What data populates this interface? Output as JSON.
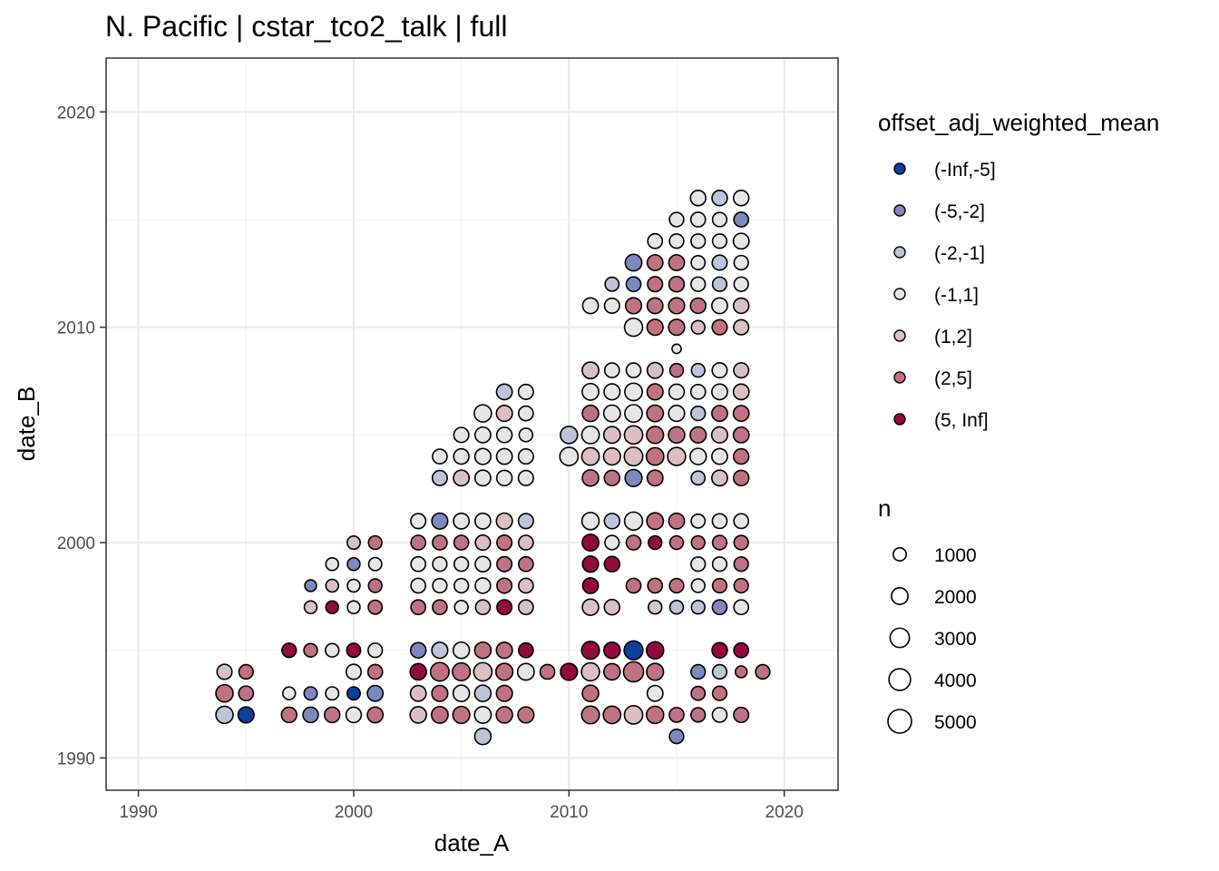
{
  "chart_data": {
    "type": "scatter",
    "title": "N. Pacific | cstar_tco2_talk | full",
    "xlabel": "date_A",
    "ylabel": "date_B",
    "xlim": [
      1988.5,
      2022.5
    ],
    "ylim": [
      1988.5,
      2022.5
    ],
    "xticks": [
      1990,
      2000,
      2010,
      2020
    ],
    "yticks": [
      1990,
      2000,
      2010,
      2020
    ],
    "grid": true,
    "color_legend": {
      "title": "offset_adj_weighted_mean",
      "classes": [
        {
          "label": "(-Inf,-5]",
          "color": "#0b3fa0"
        },
        {
          "label": "(-5,-2]",
          "color": "#7c89bf"
        },
        {
          "label": "(-2,-1]",
          "color": "#bec3d9"
        },
        {
          "label": "(-1,1]",
          "color": "#e6e6e6"
        },
        {
          "label": "(1,2]",
          "color": "#dbbfc5"
        },
        {
          "label": "(2,5]",
          "color": "#c07282"
        },
        {
          "label": "(5, Inf]",
          "color": "#930a3c"
        }
      ]
    },
    "size_legend": {
      "title": "n",
      "values": [
        1000,
        2000,
        3000,
        4000,
        5000
      ]
    },
    "points": [
      [
        1994,
        1994,
        4,
        1500
      ],
      [
        1995,
        1994,
        5,
        1300
      ],
      [
        1994,
        1993,
        5,
        2200
      ],
      [
        1995,
        1993,
        5,
        1400
      ],
      [
        1994,
        1992,
        2,
        2200
      ],
      [
        1995,
        1992,
        0,
        1800
      ],
      [
        1997,
        1995,
        6,
        1300
      ],
      [
        1998,
        1995,
        5,
        1100
      ],
      [
        1999,
        1995,
        3,
        1100
      ],
      [
        2000,
        1995,
        6,
        1200
      ],
      [
        2001,
        1995,
        3,
        1300
      ],
      [
        2000,
        1994,
        3,
        1500
      ],
      [
        2001,
        1994,
        5,
        1400
      ],
      [
        1997,
        1993,
        3,
        900
      ],
      [
        1998,
        1993,
        1,
        1000
      ],
      [
        1999,
        1993,
        3,
        1000
      ],
      [
        2000,
        1993,
        0,
        1000
      ],
      [
        2001,
        1993,
        1,
        1700
      ],
      [
        1997,
        1992,
        5,
        1600
      ],
      [
        1998,
        1992,
        1,
        1600
      ],
      [
        1999,
        1992,
        5,
        1600
      ],
      [
        2000,
        1992,
        3,
        1600
      ],
      [
        2001,
        1992,
        5,
        1700
      ],
      [
        2003,
        1995,
        1,
        1600
      ],
      [
        2004,
        1995,
        2,
        1800
      ],
      [
        2005,
        1995,
        3,
        1900
      ],
      [
        2006,
        1995,
        5,
        1900
      ],
      [
        2007,
        1995,
        5,
        1800
      ],
      [
        2008,
        1995,
        6,
        1400
      ],
      [
        2003,
        1994,
        6,
        1900
      ],
      [
        2004,
        1994,
        5,
        2700
      ],
      [
        2005,
        1994,
        5,
        2400
      ],
      [
        2006,
        1994,
        4,
        2600
      ],
      [
        2007,
        1994,
        5,
        2100
      ],
      [
        2008,
        1994,
        3,
        2000
      ],
      [
        2003,
        1993,
        4,
        1700
      ],
      [
        2004,
        1993,
        5,
        1800
      ],
      [
        2005,
        1993,
        3,
        1900
      ],
      [
        2006,
        1993,
        2,
        1900
      ],
      [
        2007,
        1993,
        5,
        1800
      ],
      [
        2003,
        1992,
        4,
        1900
      ],
      [
        2004,
        1992,
        5,
        2000
      ],
      [
        2005,
        1992,
        5,
        2100
      ],
      [
        2006,
        1992,
        3,
        2000
      ],
      [
        2007,
        1992,
        5,
        1900
      ],
      [
        2008,
        1992,
        5,
        1800
      ],
      [
        2006,
        1991,
        2,
        1900
      ],
      [
        2009,
        1994,
        5,
        1400
      ],
      [
        2010,
        1994,
        6,
        2100
      ],
      [
        2011,
        1994,
        4,
        2500
      ],
      [
        2012,
        1994,
        5,
        1900
      ],
      [
        2013,
        1994,
        5,
        3300
      ],
      [
        2014,
        1994,
        5,
        2100
      ],
      [
        2011,
        1995,
        6,
        2400
      ],
      [
        2012,
        1995,
        6,
        1900
      ],
      [
        2013,
        1995,
        0,
        2800
      ],
      [
        2014,
        1995,
        6,
        2200
      ],
      [
        2011,
        1993,
        5,
        1900
      ],
      [
        2014,
        1993,
        3,
        1700
      ],
      [
        2011,
        1992,
        5,
        2400
      ],
      [
        2012,
        1992,
        5,
        2300
      ],
      [
        2013,
        1992,
        4,
        2600
      ],
      [
        2014,
        1992,
        5,
        2200
      ],
      [
        2015,
        1992,
        5,
        1400
      ],
      [
        2015,
        1991,
        1,
        1300
      ],
      [
        2016,
        1994,
        1,
        1300
      ],
      [
        2017,
        1994,
        2,
        1300
      ],
      [
        2018,
        1994,
        5,
        700
      ],
      [
        2019,
        1994,
        5,
        1300
      ],
      [
        2016,
        1993,
        5,
        1200
      ],
      [
        2017,
        1993,
        5,
        1300
      ],
      [
        2016,
        1992,
        5,
        1300
      ],
      [
        2017,
        1992,
        3,
        1400
      ],
      [
        2018,
        1992,
        5,
        1500
      ],
      [
        2017,
        1995,
        6,
        1600
      ],
      [
        2018,
        1995,
        6,
        1400
      ],
      [
        1998,
        1998,
        1,
        700
      ],
      [
        1999,
        1998,
        4,
        900
      ],
      [
        2000,
        1998,
        3,
        900
      ],
      [
        2001,
        1998,
        5,
        1100
      ],
      [
        1998,
        1997,
        4,
        900
      ],
      [
        1999,
        1997,
        6,
        900
      ],
      [
        2000,
        1997,
        3,
        900
      ],
      [
        2001,
        1997,
        5,
        1200
      ],
      [
        1999,
        1999,
        3,
        900
      ],
      [
        2000,
        1999,
        1,
        900
      ],
      [
        2001,
        1999,
        3,
        1000
      ],
      [
        2000,
        2000,
        4,
        1000
      ],
      [
        2001,
        2000,
        5,
        1100
      ],
      [
        2003,
        2001,
        3,
        1500
      ],
      [
        2004,
        2001,
        1,
        1800
      ],
      [
        2005,
        2001,
        3,
        1700
      ],
      [
        2006,
        2001,
        3,
        1700
      ],
      [
        2007,
        2001,
        4,
        1800
      ],
      [
        2008,
        2001,
        2,
        1500
      ],
      [
        2003,
        2000,
        5,
        1400
      ],
      [
        2004,
        2000,
        5,
        1400
      ],
      [
        2005,
        2000,
        5,
        1400
      ],
      [
        2006,
        2000,
        4,
        1500
      ],
      [
        2007,
        2000,
        5,
        1500
      ],
      [
        2008,
        2000,
        4,
        1400
      ],
      [
        2003,
        1999,
        3,
        1400
      ],
      [
        2004,
        1999,
        3,
        1300
      ],
      [
        2005,
        1999,
        3,
        1300
      ],
      [
        2006,
        1999,
        3,
        1600
      ],
      [
        2007,
        1999,
        5,
        1500
      ],
      [
        2008,
        1999,
        5,
        1400
      ],
      [
        2003,
        1998,
        3,
        1400
      ],
      [
        2004,
        1998,
        3,
        1300
      ],
      [
        2005,
        1998,
        3,
        1300
      ],
      [
        2006,
        1998,
        3,
        1600
      ],
      [
        2007,
        1998,
        5,
        1500
      ],
      [
        2008,
        1998,
        4,
        1400
      ],
      [
        2003,
        1997,
        5,
        1400
      ],
      [
        2004,
        1997,
        5,
        1400
      ],
      [
        2005,
        1997,
        3,
        1100
      ],
      [
        2006,
        1997,
        4,
        1400
      ],
      [
        2007,
        1997,
        6,
        1500
      ],
      [
        2008,
        1997,
        4,
        1400
      ],
      [
        2011,
        2001,
        3,
        2200
      ],
      [
        2012,
        2001,
        2,
        1600
      ],
      [
        2013,
        2001,
        3,
        2500
      ],
      [
        2014,
        2001,
        5,
        2000
      ],
      [
        2015,
        2001,
        5,
        1700
      ],
      [
        2016,
        2001,
        3,
        1200
      ],
      [
        2017,
        2001,
        3,
        1400
      ],
      [
        2018,
        2001,
        3,
        1400
      ],
      [
        2011,
        2000,
        6,
        2000
      ],
      [
        2012,
        2000,
        3,
        1300
      ],
      [
        2013,
        2000,
        5,
        1400
      ],
      [
        2014,
        2000,
        6,
        1100
      ],
      [
        2015,
        2000,
        5,
        1100
      ],
      [
        2016,
        2000,
        5,
        1100
      ],
      [
        2017,
        2000,
        5,
        1300
      ],
      [
        2018,
        2000,
        5,
        1300
      ],
      [
        2011,
        1999,
        6,
        1800
      ],
      [
        2012,
        1999,
        6,
        1600
      ],
      [
        2016,
        1999,
        3,
        1300
      ],
      [
        2017,
        1999,
        3,
        1300
      ],
      [
        2018,
        1999,
        5,
        1300
      ],
      [
        2011,
        1998,
        6,
        1700
      ],
      [
        2013,
        1998,
        5,
        1400
      ],
      [
        2014,
        1998,
        5,
        1400
      ],
      [
        2015,
        1998,
        5,
        1300
      ],
      [
        2016,
        1998,
        3,
        1100
      ],
      [
        2017,
        1998,
        5,
        1300
      ],
      [
        2018,
        1998,
        5,
        1300
      ],
      [
        2011,
        1997,
        4,
        1900
      ],
      [
        2012,
        1997,
        4,
        1600
      ],
      [
        2014,
        1997,
        4,
        1100
      ],
      [
        2015,
        1997,
        2,
        1100
      ],
      [
        2016,
        1997,
        2,
        1100
      ],
      [
        2017,
        1997,
        1,
        1400
      ],
      [
        2018,
        1997,
        3,
        1400
      ],
      [
        2004,
        2004,
        3,
        1400
      ],
      [
        2005,
        2004,
        3,
        1600
      ],
      [
        2006,
        2004,
        3,
        1800
      ],
      [
        2007,
        2004,
        3,
        1700
      ],
      [
        2008,
        2004,
        3,
        1500
      ],
      [
        2004,
        2003,
        2,
        1500
      ],
      [
        2005,
        2003,
        4,
        1700
      ],
      [
        2006,
        2003,
        3,
        1700
      ],
      [
        2007,
        2003,
        3,
        1600
      ],
      [
        2008,
        2003,
        3,
        1500
      ],
      [
        2005,
        2005,
        3,
        1500
      ],
      [
        2006,
        2005,
        3,
        1700
      ],
      [
        2007,
        2005,
        3,
        1600
      ],
      [
        2008,
        2005,
        3,
        1100
      ],
      [
        2006,
        2006,
        3,
        2200
      ],
      [
        2007,
        2006,
        4,
        1800
      ],
      [
        2008,
        2006,
        3,
        1400
      ],
      [
        2007,
        2007,
        2,
        1700
      ],
      [
        2008,
        2007,
        3,
        1500
      ],
      [
        2010,
        2005,
        2,
        2200
      ],
      [
        2010,
        2004,
        3,
        2600
      ],
      [
        2011,
        2008,
        4,
        2000
      ],
      [
        2012,
        2008,
        3,
        1400
      ],
      [
        2013,
        2008,
        3,
        1400
      ],
      [
        2014,
        2008,
        4,
        1700
      ],
      [
        2015,
        2008,
        5,
        1100
      ],
      [
        2016,
        2008,
        2,
        1100
      ],
      [
        2017,
        2008,
        3,
        1500
      ],
      [
        2018,
        2008,
        4,
        1500
      ],
      [
        2011,
        2007,
        3,
        2000
      ],
      [
        2012,
        2007,
        3,
        1800
      ],
      [
        2013,
        2007,
        3,
        2300
      ],
      [
        2014,
        2007,
        5,
        1800
      ],
      [
        2015,
        2007,
        3,
        1600
      ],
      [
        2016,
        2007,
        3,
        1400
      ],
      [
        2017,
        2007,
        3,
        1700
      ],
      [
        2018,
        2007,
        4,
        1700
      ],
      [
        2011,
        2006,
        5,
        1900
      ],
      [
        2012,
        2006,
        3,
        2000
      ],
      [
        2013,
        2006,
        3,
        2300
      ],
      [
        2014,
        2006,
        5,
        2000
      ],
      [
        2015,
        2006,
        3,
        1800
      ],
      [
        2016,
        2006,
        2,
        1300
      ],
      [
        2017,
        2006,
        5,
        1700
      ],
      [
        2018,
        2006,
        5,
        1700
      ],
      [
        2011,
        2005,
        3,
        2300
      ],
      [
        2012,
        2005,
        4,
        2000
      ],
      [
        2013,
        2005,
        4,
        2600
      ],
      [
        2014,
        2005,
        5,
        2100
      ],
      [
        2015,
        2005,
        5,
        1900
      ],
      [
        2016,
        2005,
        5,
        1800
      ],
      [
        2017,
        2005,
        4,
        1800
      ],
      [
        2018,
        2005,
        5,
        1700
      ],
      [
        2011,
        2004,
        4,
        2300
      ],
      [
        2012,
        2004,
        4,
        2100
      ],
      [
        2013,
        2004,
        4,
        2700
      ],
      [
        2014,
        2004,
        5,
        2300
      ],
      [
        2015,
        2004,
        4,
        2500
      ],
      [
        2016,
        2004,
        3,
        1900
      ],
      [
        2017,
        2004,
        3,
        1700
      ],
      [
        2018,
        2004,
        5,
        1600
      ],
      [
        2011,
        2003,
        5,
        1900
      ],
      [
        2012,
        2003,
        5,
        1600
      ],
      [
        2013,
        2003,
        1,
        2100
      ],
      [
        2014,
        2003,
        5,
        1700
      ],
      [
        2016,
        2003,
        2,
        1200
      ],
      [
        2017,
        2003,
        4,
        1700
      ],
      [
        2018,
        2003,
        5,
        1600
      ],
      [
        2015,
        2009,
        3,
        300
      ],
      [
        2011,
        2011,
        3,
        1700
      ],
      [
        2012,
        2011,
        3,
        1500
      ],
      [
        2013,
        2011,
        5,
        1800
      ],
      [
        2014,
        2011,
        5,
        1700
      ],
      [
        2015,
        2011,
        5,
        1800
      ],
      [
        2016,
        2011,
        5,
        1600
      ],
      [
        2017,
        2011,
        3,
        1700
      ],
      [
        2018,
        2011,
        4,
        1600
      ],
      [
        2012,
        2012,
        2,
        1200
      ],
      [
        2013,
        2012,
        1,
        1400
      ],
      [
        2014,
        2012,
        5,
        1500
      ],
      [
        2015,
        2012,
        5,
        1600
      ],
      [
        2016,
        2012,
        3,
        1300
      ],
      [
        2017,
        2012,
        2,
        1300
      ],
      [
        2018,
        2012,
        3,
        1300
      ],
      [
        2013,
        2013,
        1,
        2000
      ],
      [
        2014,
        2013,
        5,
        1700
      ],
      [
        2015,
        2013,
        5,
        1700
      ],
      [
        2016,
        2013,
        3,
        1200
      ],
      [
        2017,
        2013,
        2,
        1500
      ],
      [
        2018,
        2013,
        3,
        1300
      ],
      [
        2013,
        2010,
        3,
        2500
      ],
      [
        2014,
        2010,
        5,
        1800
      ],
      [
        2015,
        2010,
        5,
        1800
      ],
      [
        2016,
        2010,
        4,
        1100
      ],
      [
        2017,
        2010,
        5,
        1500
      ],
      [
        2018,
        2010,
        4,
        1500
      ],
      [
        2014,
        2014,
        3,
        1400
      ],
      [
        2015,
        2014,
        3,
        1300
      ],
      [
        2016,
        2014,
        3,
        1300
      ],
      [
        2017,
        2014,
        3,
        1300
      ],
      [
        2018,
        2014,
        3,
        1700
      ],
      [
        2015,
        2015,
        3,
        1300
      ],
      [
        2016,
        2015,
        3,
        1400
      ],
      [
        2017,
        2015,
        3,
        1300
      ],
      [
        2018,
        2015,
        1,
        1400
      ],
      [
        2016,
        2016,
        3,
        1600
      ],
      [
        2017,
        2016,
        2,
        1600
      ],
      [
        2018,
        2016,
        3,
        1600
      ]
    ]
  }
}
